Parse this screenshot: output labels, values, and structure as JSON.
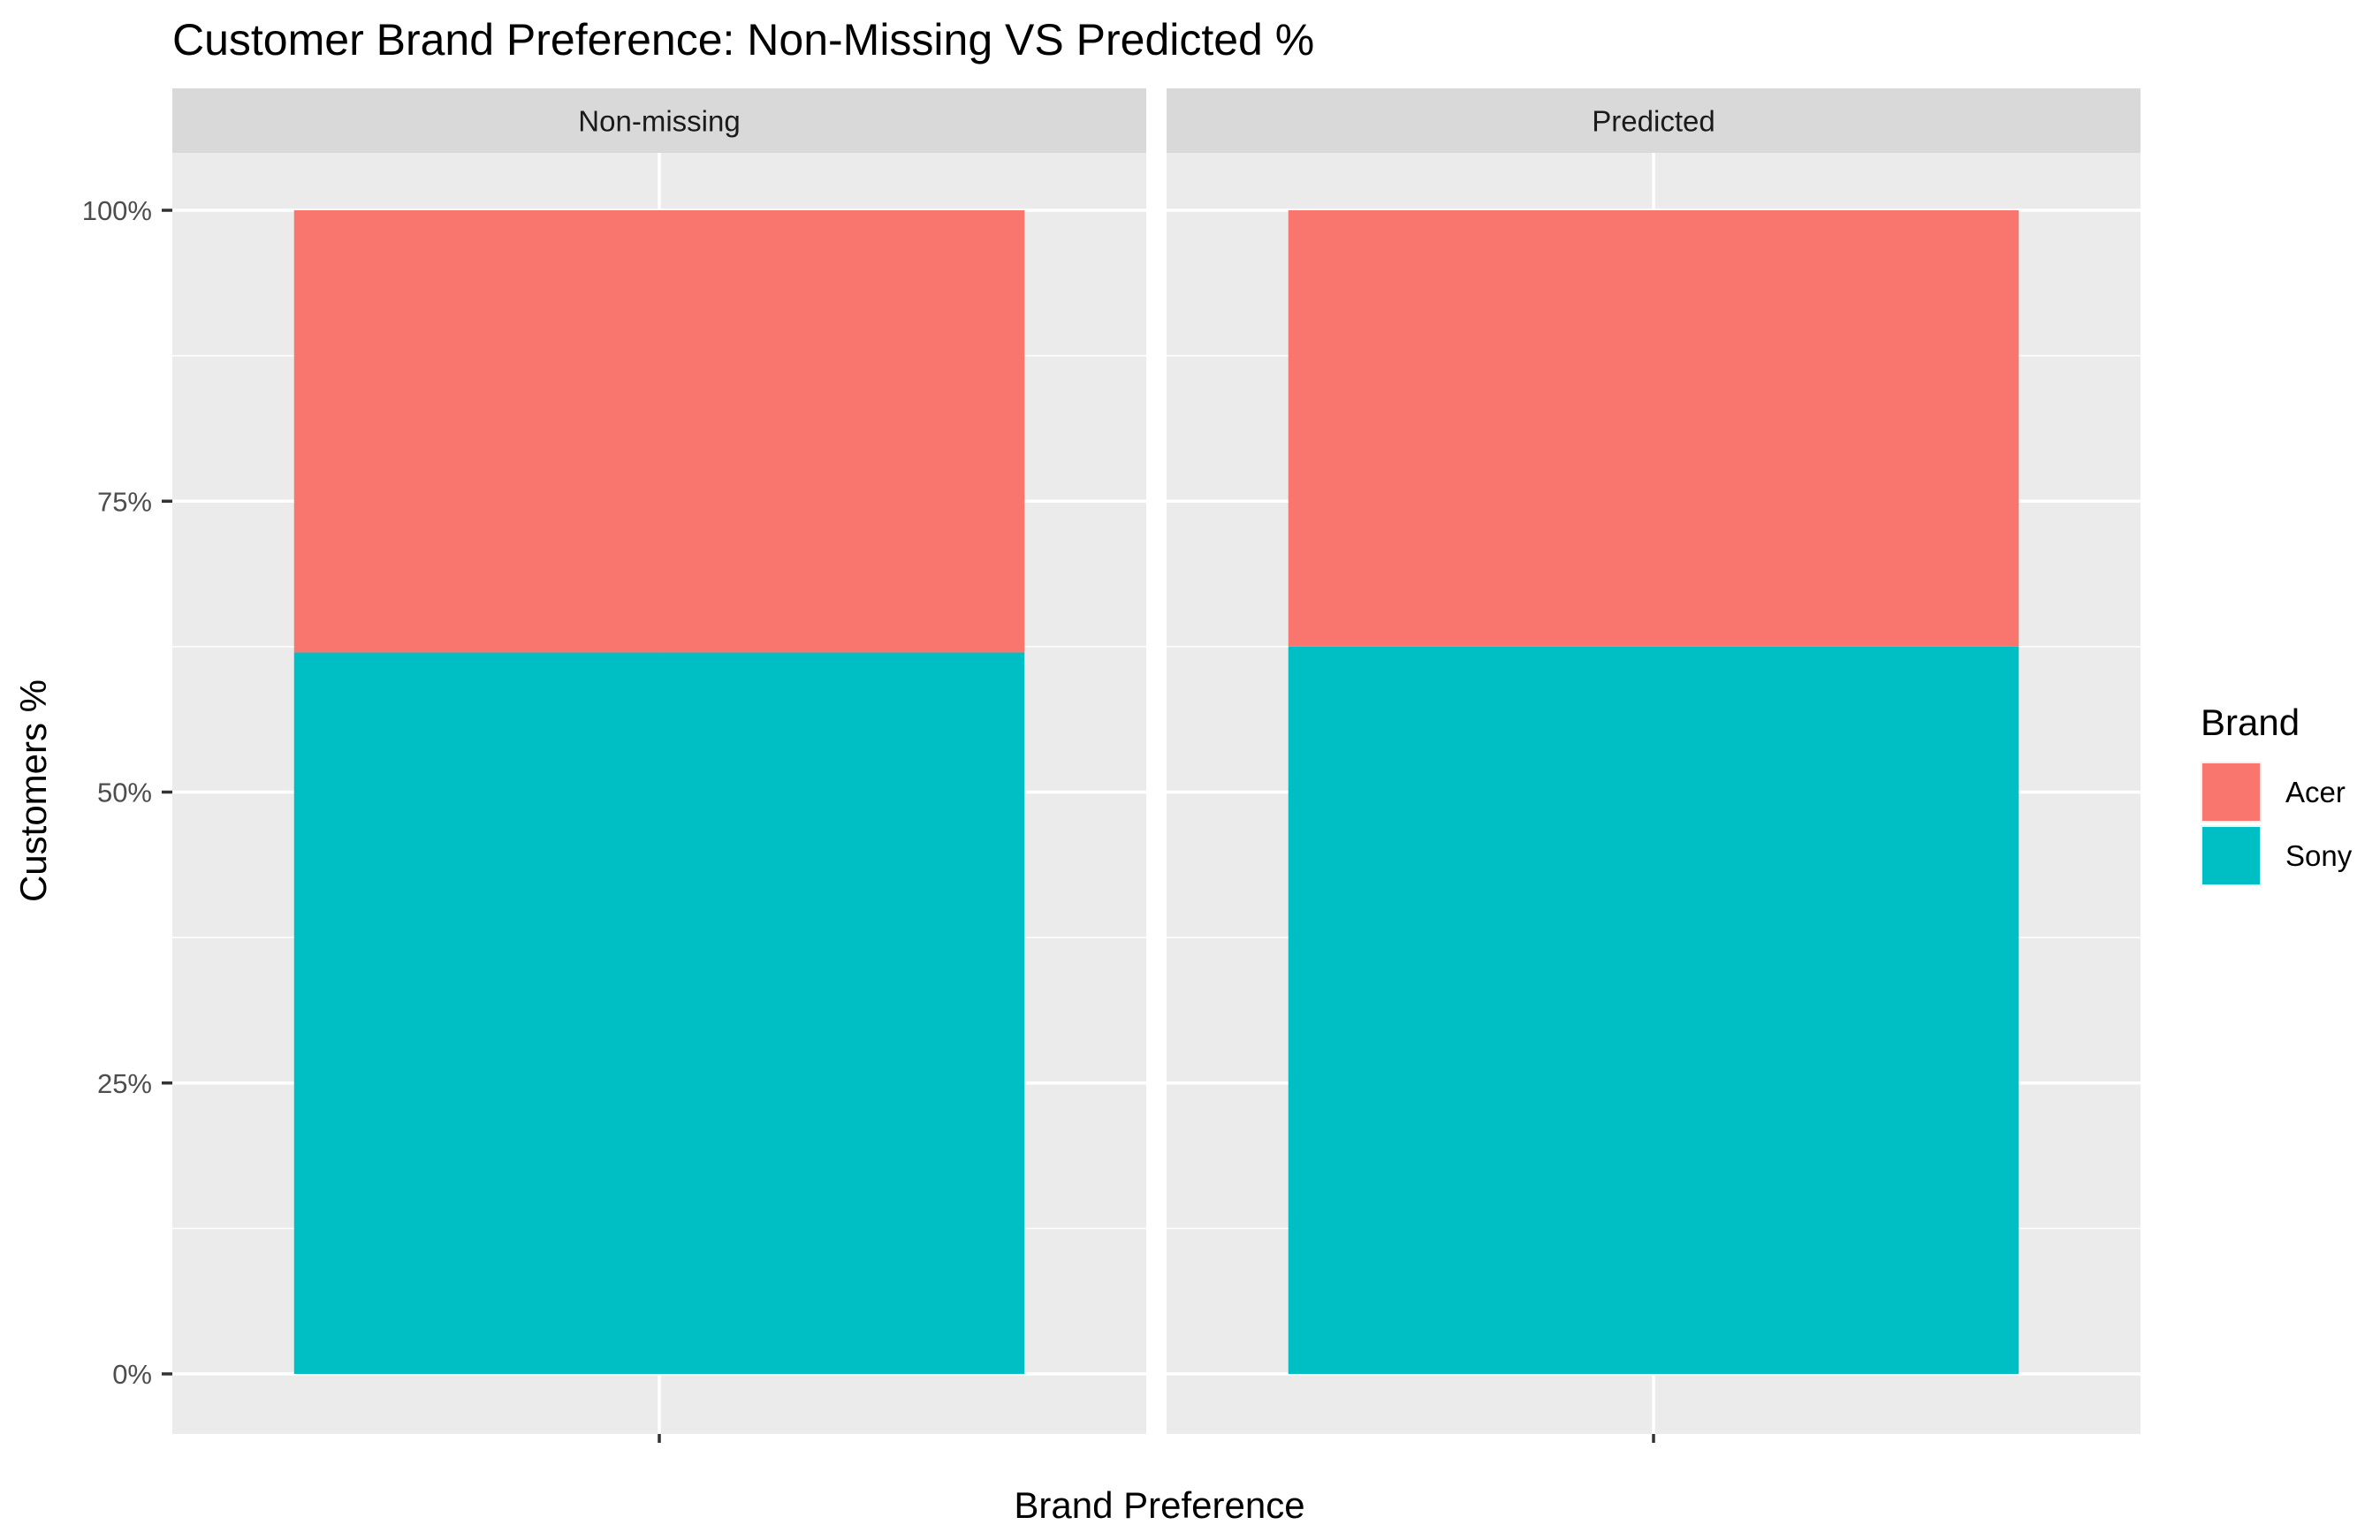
{
  "chart_data": {
    "type": "bar",
    "stacked": true,
    "title": "Customer Brand Preference: Non-Missing VS Predicted %",
    "xlabel": "Brand Preference",
    "ylabel": "Customers %",
    "ylim": [
      0,
      1.05
    ],
    "y_ticks": [
      0,
      0.25,
      0.5,
      0.75,
      1.0
    ],
    "y_tick_labels": [
      "0%",
      "25%",
      "50%",
      "75%",
      "100%"
    ],
    "grid": true,
    "legend": {
      "title": "Brand",
      "position": "right",
      "entries": [
        "Acer",
        "Sony"
      ]
    },
    "facets": [
      "Non-missing",
      "Predicted"
    ],
    "series": [
      {
        "name": "Sony",
        "color": "#00BFC4",
        "values": [
          0.62,
          0.625
        ]
      },
      {
        "name": "Acer",
        "color": "#F8766D",
        "values": [
          0.38,
          0.375
        ]
      }
    ]
  }
}
